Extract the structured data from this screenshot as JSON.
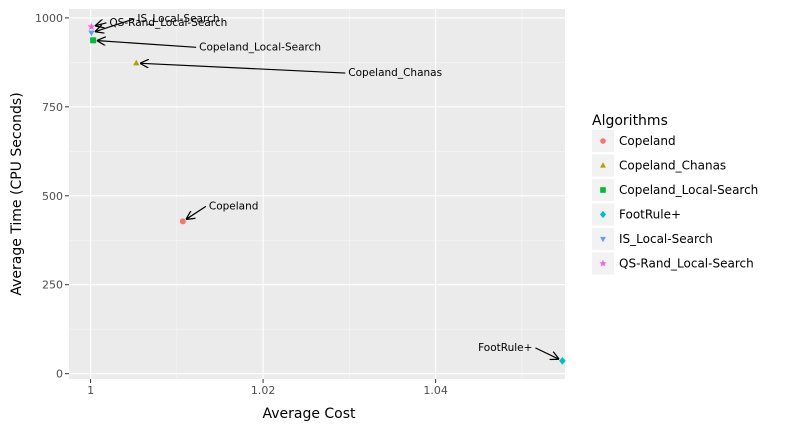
{
  "chart_data": {
    "type": "scatter",
    "xlabel": "Average Cost",
    "ylabel": "Average Time (CPU Seconds)",
    "xlim": [
      0.9975,
      1.055
    ],
    "ylim": [
      -15,
      1025
    ],
    "x_ticks": [
      {
        "value": 1.0,
        "label": "1"
      },
      {
        "value": 1.02,
        "label": "1.02"
      },
      {
        "value": 1.04,
        "label": "1.04"
      }
    ],
    "y_ticks": [
      {
        "value": 0,
        "label": "0"
      },
      {
        "value": 250,
        "label": "250"
      },
      {
        "value": 500,
        "label": "500"
      },
      {
        "value": 750,
        "label": "750"
      },
      {
        "value": 1000,
        "label": "1000"
      }
    ],
    "grid": true,
    "legend": {
      "title": "Algorithms",
      "position": "right"
    },
    "series": [
      {
        "name": "Copeland",
        "shape": "circle",
        "color": "#F8766D",
        "x": 1.0107,
        "y": 428
      },
      {
        "name": "Copeland_Chanas",
        "shape": "triangle-up",
        "color": "#B79F00",
        "x": 1.0053,
        "y": 873
      },
      {
        "name": "Copeland_Local-Search",
        "shape": "square",
        "color": "#00BA38",
        "x": 1.0003,
        "y": 937
      },
      {
        "name": "FootRule+",
        "shape": "diamond",
        "color": "#00BFC4",
        "x": 1.0547,
        "y": 36
      },
      {
        "name": "IS_Local-Search",
        "shape": "triangle-down",
        "color": "#619CFF",
        "x": 1.0001,
        "y": 958
      },
      {
        "name": "QS-Rand_Local-Search",
        "shape": "star",
        "color": "#F564E3",
        "x": 1.0001,
        "y": 975
      }
    ],
    "annotations": [
      {
        "text": "Copeland",
        "target": "Copeland"
      },
      {
        "text": "Copeland_Chanas",
        "target": "Copeland_Chanas"
      },
      {
        "text": "Copeland_Local-Search",
        "target": "Copeland_Local-Search"
      },
      {
        "text": "FootRule+",
        "target": "FootRule+"
      },
      {
        "text": "IS_Local-Search",
        "target": "IS_Local-Search"
      },
      {
        "text": "QS-Rand_Local-Search",
        "target": "QS-Rand_Local-Search"
      }
    ]
  }
}
